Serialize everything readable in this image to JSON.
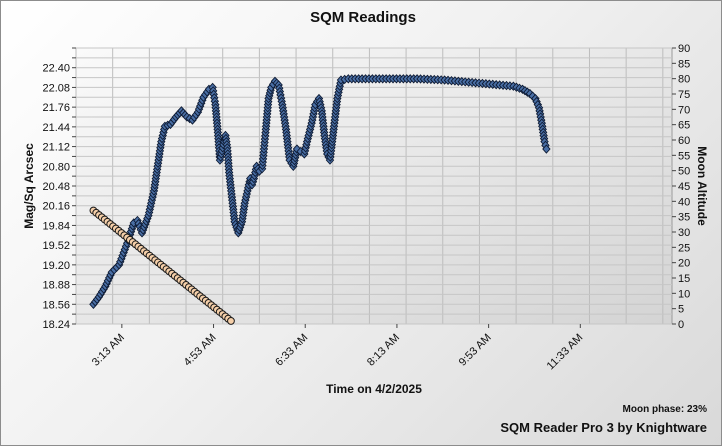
{
  "chart_data": {
    "type": "scatter",
    "title": "SQM Readings",
    "xlabel": "Time on 4/2/2025",
    "ylabel": "Mag/Sq Arcsec",
    "y2label": "Moon Altitude",
    "x_ticks": [
      "3:13 AM",
      "4:53 AM",
      "6:33 AM",
      "8:13 AM",
      "9:53 AM",
      "11:33 AM"
    ],
    "xlim": [
      "2:23 AM",
      "1:13 PM"
    ],
    "ylim": [
      18.24,
      22.72
    ],
    "y_ticks": [
      "18.24",
      "18.56",
      "18.88",
      "19.20",
      "19.52",
      "19.84",
      "20.16",
      "20.48",
      "20.80",
      "21.12",
      "21.44",
      "21.76",
      "22.08",
      "22.40"
    ],
    "y2lim": [
      0,
      90
    ],
    "y2_ticks": [
      "0",
      "5",
      "10",
      "15",
      "20",
      "25",
      "30",
      "35",
      "40",
      "45",
      "50",
      "55",
      "60",
      "65",
      "70",
      "75",
      "80",
      "85",
      "90"
    ],
    "grid": true,
    "series": [
      {
        "axis": "left",
        "marker": "diamond",
        "color": "#4a6fa5",
        "points": [
          [
            "2:42 AM",
            18.56
          ],
          [
            "2:48 AM",
            18.68
          ],
          [
            "2:55 AM",
            18.85
          ],
          [
            "3:02 AM",
            19.08
          ],
          [
            "3:10 AM",
            19.2
          ],
          [
            "3:15 AM",
            19.4
          ],
          [
            "3:20 AM",
            19.6
          ],
          [
            "3:26 AM",
            19.88
          ],
          [
            "3:30 AM",
            19.92
          ],
          [
            "3:35 AM",
            19.72
          ],
          [
            "3:42 AM",
            20.0
          ],
          [
            "3:48 AM",
            20.4
          ],
          [
            "3:52 AM",
            20.8
          ],
          [
            "3:56 AM",
            21.2
          ],
          [
            "4:00 AM",
            21.45
          ],
          [
            "4:06 AM",
            21.48
          ],
          [
            "4:12 AM",
            21.6
          ],
          [
            "4:18 AM",
            21.7
          ],
          [
            "4:24 AM",
            21.6
          ],
          [
            "4:30 AM",
            21.55
          ],
          [
            "4:36 AM",
            21.68
          ],
          [
            "4:42 AM",
            21.92
          ],
          [
            "4:48 AM",
            22.05
          ],
          [
            "4:52 AM",
            22.08
          ],
          [
            "4:55 AM",
            21.8
          ],
          [
            "4:58 AM",
            21.3
          ],
          [
            "5:00 AM",
            20.9
          ],
          [
            "5:03 AM",
            21.1
          ],
          [
            "5:06 AM",
            21.3
          ],
          [
            "5:08 AM",
            21.1
          ],
          [
            "5:10 AM",
            20.7
          ],
          [
            "5:13 AM",
            20.3
          ],
          [
            "5:16 AM",
            19.9
          ],
          [
            "5:20 AM",
            19.72
          ],
          [
            "5:24 AM",
            19.9
          ],
          [
            "5:27 AM",
            20.2
          ],
          [
            "5:30 AM",
            20.4
          ],
          [
            "5:33 AM",
            20.6
          ],
          [
            "5:35 AM",
            20.5
          ],
          [
            "5:37 AM",
            20.6
          ],
          [
            "5:40 AM",
            20.8
          ],
          [
            "5:43 AM",
            20.72
          ],
          [
            "5:46 AM",
            20.76
          ],
          [
            "5:50 AM",
            21.4
          ],
          [
            "5:53 AM",
            21.9
          ],
          [
            "5:56 AM",
            22.08
          ],
          [
            "6:00 AM",
            22.18
          ],
          [
            "6:04 AM",
            22.12
          ],
          [
            "6:08 AM",
            21.8
          ],
          [
            "6:12 AM",
            21.4
          ],
          [
            "6:16 AM",
            20.9
          ],
          [
            "6:20 AM",
            20.8
          ],
          [
            "6:24 AM",
            21.08
          ],
          [
            "6:28 AM",
            21.04
          ],
          [
            "6:32 AM",
            21.0
          ],
          [
            "6:35 AM",
            21.2
          ],
          [
            "6:40 AM",
            21.5
          ],
          [
            "6:44 AM",
            21.8
          ],
          [
            "6:48 AM",
            21.9
          ],
          [
            "6:51 AM",
            21.7
          ],
          [
            "6:54 AM",
            21.3
          ],
          [
            "6:57 AM",
            21.0
          ],
          [
            "7:00 AM",
            20.9
          ],
          [
            "7:04 AM",
            21.4
          ],
          [
            "7:08 AM",
            21.9
          ],
          [
            "7:12 AM",
            22.2
          ],
          [
            "7:20 AM",
            22.22
          ],
          [
            "7:35 AM",
            22.22
          ],
          [
            "7:50 AM",
            22.22
          ],
          [
            "8:05 AM",
            22.22
          ],
          [
            "8:20 AM",
            22.22
          ],
          [
            "8:35 AM",
            22.22
          ],
          [
            "8:50 AM",
            22.21
          ],
          [
            "9:05 AM",
            22.2
          ],
          [
            "9:20 AM",
            22.18
          ],
          [
            "9:35 AM",
            22.16
          ],
          [
            "9:50 AM",
            22.14
          ],
          [
            "10:05 AM",
            22.12
          ],
          [
            "10:20 AM",
            22.1
          ],
          [
            "10:30 AM",
            22.05
          ],
          [
            "10:38 AM",
            21.98
          ],
          [
            "10:44 AM",
            21.9
          ],
          [
            "10:48 AM",
            21.75
          ],
          [
            "10:51 AM",
            21.5
          ],
          [
            "10:54 AM",
            21.2
          ],
          [
            "10:56 AM",
            21.08
          ]
        ]
      },
      {
        "axis": "right",
        "marker": "circle",
        "color": "#f5cfa9",
        "points": [
          [
            "2:42 AM",
            37
          ],
          [
            "5:12 AM",
            1
          ]
        ]
      }
    ]
  },
  "footer": {
    "moon_phase": "Moon phase: 23%",
    "credit": "SQM Reader Pro 3 by Knightware"
  }
}
